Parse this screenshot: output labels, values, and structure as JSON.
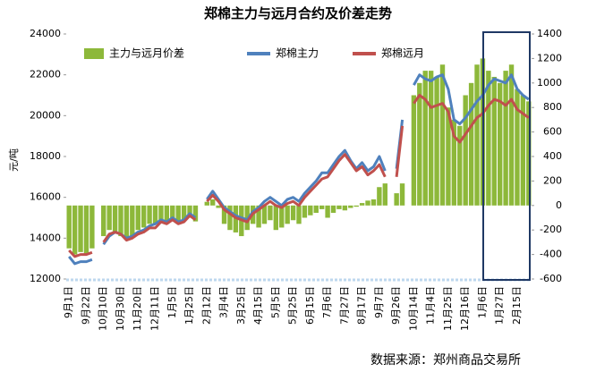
{
  "chart_data": {
    "type": "bar_line",
    "title": "郑棉主力与远月合约及价差走势",
    "y_label": "元/吨",
    "source": "数据来源：郑州商品交易所",
    "ylim": [
      12000,
      24000
    ],
    "yticks": [
      12000,
      14000,
      16000,
      18000,
      20000,
      22000,
      24000
    ],
    "y2lim": [
      -600,
      1400
    ],
    "y2ticks": [
      -600,
      -400,
      -200,
      0,
      200,
      400,
      600,
      800,
      1000,
      1200,
      1400
    ],
    "categories": [
      "9月1日",
      null,
      null,
      "9月22日",
      null,
      null,
      "10月10日",
      null,
      null,
      "10月30日",
      null,
      null,
      "11月20日",
      null,
      null,
      "12月11日",
      null,
      null,
      "1月5日",
      null,
      null,
      "1月25日",
      null,
      null,
      "2月12日",
      null,
      null,
      "3月4日",
      null,
      null,
      "3月25日",
      null,
      null,
      "4月15日",
      null,
      null,
      "5月5日",
      null,
      null,
      "5月25日",
      null,
      null,
      "6月15日",
      null,
      null,
      "7月6日",
      null,
      null,
      "7月27日",
      null,
      null,
      "8月17日",
      null,
      null,
      "9月7日",
      null,
      null,
      "9月26日",
      null,
      null,
      "10月14日",
      null,
      null,
      "11月4日",
      null,
      null,
      "11月25日",
      null,
      null,
      "12月16日",
      null,
      null,
      "1月6日",
      null,
      null,
      "1月27日",
      null,
      null,
      "2月15日",
      null,
      null
    ],
    "series": [
      {
        "name": "主力与远月价差",
        "kind": "bar",
        "axis": "y2",
        "color": "#8db83a",
        "values": [
          -350,
          -400,
          -380,
          -400,
          -350,
          null,
          -250,
          -200,
          -230,
          -250,
          -280,
          -260,
          -200,
          -180,
          -150,
          -150,
          -120,
          -150,
          -100,
          -150,
          -120,
          -100,
          -130,
          null,
          30,
          50,
          -20,
          -150,
          -200,
          -220,
          -250,
          -200,
          -150,
          -180,
          -150,
          -120,
          -200,
          -180,
          -150,
          -120,
          -150,
          -100,
          -80,
          -60,
          -30,
          -100,
          -60,
          -30,
          -40,
          -20,
          -10,
          20,
          40,
          50,
          150,
          180,
          null,
          100,
          180,
          null,
          900,
          1000,
          1100,
          1100,
          1050,
          1150,
          800,
          700,
          650,
          900,
          1000,
          1150,
          1200,
          1100,
          1050,
          1000,
          1100,
          1150,
          950,
          900,
          850
        ]
      },
      {
        "name": "郑棉主力",
        "kind": "line",
        "color": "#4f81bd",
        "values": [
          13100,
          12750,
          12850,
          12850,
          12950,
          null,
          13700,
          14100,
          14300,
          14200,
          14000,
          14100,
          14300,
          14400,
          14600,
          14700,
          14900,
          14800,
          15000,
          14800,
          14900,
          15200,
          15000,
          null,
          15900,
          16300,
          15900,
          15500,
          15300,
          15100,
          15000,
          14900,
          15300,
          15500,
          15800,
          16000,
          15800,
          15600,
          15900,
          16000,
          15800,
          16200,
          16500,
          16800,
          17200,
          17200,
          17600,
          18000,
          18300,
          17800,
          17400,
          17700,
          17300,
          17500,
          18000,
          17300,
          null,
          17400,
          19800,
          null,
          21500,
          22000,
          21800,
          21700,
          21900,
          22000,
          21300,
          19800,
          19600,
          19900,
          20300,
          20700,
          21000,
          21500,
          21800,
          21700,
          21600,
          22000,
          21300,
          21000,
          20800
        ]
      },
      {
        "name": "郑棉远月",
        "kind": "line",
        "color": "#c0504d",
        "values": [
          13400,
          13100,
          13200,
          13200,
          13300,
          null,
          13800,
          14200,
          14300,
          14200,
          13900,
          14000,
          14200,
          14300,
          14500,
          14500,
          14800,
          14700,
          14900,
          14700,
          14800,
          15100,
          14900,
          null,
          15800,
          16100,
          15800,
          15400,
          15200,
          15000,
          14900,
          14800,
          15200,
          15400,
          15600,
          15800,
          15600,
          15500,
          15700,
          15800,
          15600,
          16000,
          16300,
          16600,
          16900,
          17000,
          17400,
          17800,
          18100,
          17700,
          17300,
          17500,
          17100,
          17300,
          17600,
          17000,
          null,
          17000,
          19500,
          null,
          20600,
          21000,
          20800,
          20400,
          20500,
          20600,
          20200,
          19000,
          18700,
          19100,
          19500,
          19900,
          20100,
          20500,
          20800,
          20700,
          20500,
          20800,
          20300,
          20100,
          19900
        ]
      }
    ]
  }
}
